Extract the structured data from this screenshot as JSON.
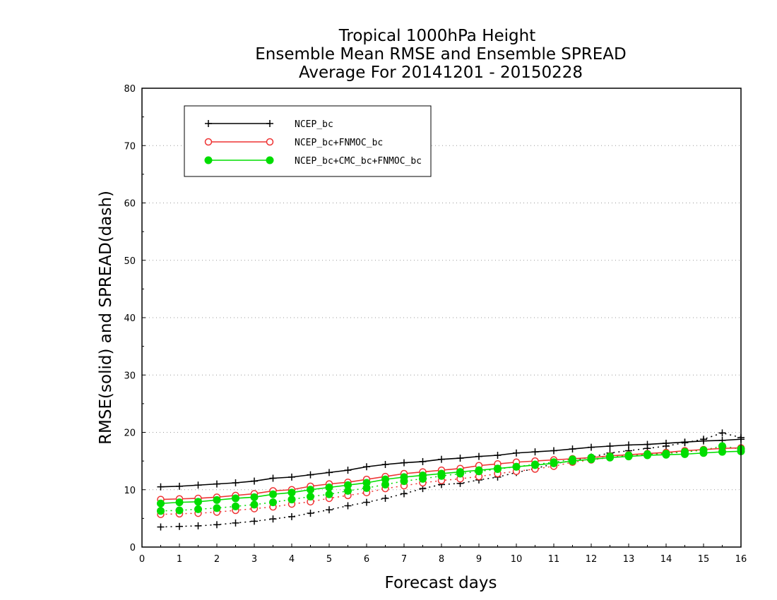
{
  "chart_data": {
    "type": "line",
    "title": [
      "Tropical 1000hPa Height",
      "Ensemble Mean RMSE and Ensemble SPREAD",
      "Average For 20141201 - 20150228"
    ],
    "xlabel": "Forecast days",
    "ylabel": "RMSE(solid) and SPREAD(dash)",
    "xlim": [
      0,
      16
    ],
    "ylim": [
      0,
      80
    ],
    "xticks": [
      0,
      1,
      2,
      3,
      4,
      5,
      6,
      7,
      8,
      9,
      10,
      11,
      12,
      13,
      14,
      15,
      16
    ],
    "yticks": [
      0,
      10,
      20,
      30,
      40,
      50,
      60,
      70,
      80
    ],
    "grid": "horizontal dotted",
    "legend_position": "top-left",
    "x": [
      0.5,
      1,
      1.5,
      2,
      2.5,
      3,
      3.5,
      4,
      4.5,
      5,
      5.5,
      6,
      6.5,
      7,
      7.5,
      8,
      8.5,
      9,
      9.5,
      10,
      10.5,
      11,
      11.5,
      12,
      12.5,
      13,
      13.5,
      14,
      14.5,
      15,
      15.5,
      16
    ],
    "series": [
      {
        "name": "NCEP_bc",
        "color": "#000000",
        "marker": "plus",
        "rmse": [
          10.5,
          10.6,
          10.8,
          11.0,
          11.2,
          11.5,
          12.0,
          12.2,
          12.6,
          13.0,
          13.4,
          14.0,
          14.4,
          14.7,
          14.9,
          15.3,
          15.5,
          15.8,
          16.0,
          16.4,
          16.6,
          16.8,
          17.1,
          17.4,
          17.6,
          17.8,
          17.9,
          18.1,
          18.3,
          18.5,
          18.6,
          18.8
        ],
        "spread": [
          3.5,
          3.6,
          3.7,
          3.9,
          4.2,
          4.5,
          4.9,
          5.3,
          5.9,
          6.5,
          7.2,
          7.8,
          8.5,
          9.3,
          10.2,
          10.9,
          11.1,
          11.7,
          12.2,
          13.0,
          13.7,
          14.5,
          15.1,
          15.7,
          16.4,
          16.8,
          17.2,
          17.6,
          18.2,
          18.8,
          19.9,
          19.1
        ]
      },
      {
        "name": "NCEP_bc+FNMOC_bc",
        "color": "#ee3333",
        "marker": "open-circle",
        "rmse": [
          8.3,
          8.4,
          8.5,
          8.7,
          9.0,
          9.3,
          9.8,
          10.0,
          10.6,
          11.0,
          11.3,
          11.8,
          12.3,
          12.8,
          13.1,
          13.4,
          13.7,
          14.2,
          14.5,
          14.8,
          15.0,
          15.2,
          15.4,
          15.6,
          15.9,
          16.1,
          16.3,
          16.5,
          16.8,
          17.0,
          17.2,
          17.3
        ],
        "spread": [
          5.7,
          5.8,
          5.9,
          6.1,
          6.4,
          6.7,
          7.0,
          7.5,
          7.9,
          8.5,
          9.0,
          9.5,
          10.2,
          10.7,
          11.2,
          11.6,
          11.9,
          12.3,
          12.8,
          13.2,
          13.6,
          14.1,
          14.8,
          15.2,
          15.6,
          15.9,
          16.1,
          16.4,
          16.7,
          16.9,
          17.3,
          17.2
        ]
      },
      {
        "name": "NCEP_bc+CMC_bc+FNMOC_bc",
        "color": "#00dd00",
        "marker": "filled-circle",
        "rmse": [
          7.6,
          7.8,
          7.9,
          8.2,
          8.5,
          8.7,
          9.2,
          9.5,
          10.0,
          10.4,
          10.8,
          11.2,
          11.8,
          12.2,
          12.5,
          12.8,
          13.1,
          13.4,
          13.7,
          14.0,
          14.3,
          14.6,
          15.0,
          15.3,
          15.6,
          15.8,
          16.0,
          16.1,
          16.2,
          16.4,
          16.6,
          16.7
        ],
        "spread": [
          6.3,
          6.4,
          6.6,
          6.8,
          7.1,
          7.4,
          7.8,
          8.3,
          8.8,
          9.2,
          9.8,
          10.3,
          10.9,
          11.5,
          11.9,
          12.4,
          12.8,
          13.2,
          13.6,
          14.0,
          14.4,
          14.8,
          15.3,
          15.6,
          15.8,
          16.0,
          16.2,
          16.3,
          16.6,
          16.9,
          17.6,
          17.1
        ]
      }
    ]
  }
}
